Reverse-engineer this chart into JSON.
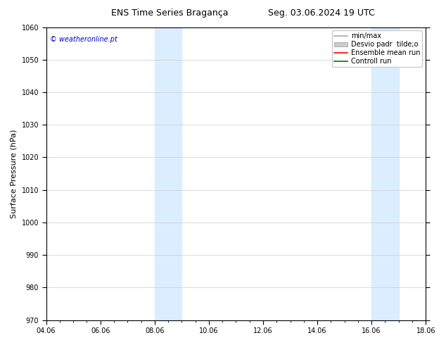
{
  "title_left": "ENS Time Series Bragança",
  "title_right": "Seg. 03.06.2024 19 UTC",
  "ylabel": "Surface Pressure (hPa)",
  "watermark": "© weatheronline.pt",
  "ylim": [
    970,
    1060
  ],
  "yticks": [
    970,
    980,
    990,
    1000,
    1010,
    1020,
    1030,
    1040,
    1050,
    1060
  ],
  "xtick_labels": [
    "04.06",
    "06.06",
    "08.06",
    "10.06",
    "12.06",
    "14.06",
    "16.06",
    "18.06"
  ],
  "xtick_positions": [
    0,
    2,
    4,
    6,
    8,
    10,
    12,
    14
  ],
  "xlim": [
    0,
    14
  ],
  "shaded_bands": [
    {
      "x_start": 4.0,
      "x_end": 5.0
    },
    {
      "x_start": 12.0,
      "x_end": 13.0
    }
  ],
  "shaded_color": "#daeeff",
  "legend_entries": [
    {
      "label": "min/max",
      "color": "#aaaaaa",
      "lw": 1.2,
      "type": "line"
    },
    {
      "label": "Desvio padr  tilde;o",
      "color": "#cccccc",
      "lw": 6,
      "type": "patch"
    },
    {
      "label": "Ensemble mean run",
      "color": "#ff0000",
      "lw": 1.2,
      "type": "line"
    },
    {
      "label": "Controll run",
      "color": "#007700",
      "lw": 1.2,
      "type": "line"
    }
  ],
  "bg_color": "#ffffff",
  "spine_color": "#000000",
  "grid_color": "#cccccc",
  "watermark_color": "#0000cc",
  "title_fontsize": 9,
  "label_fontsize": 8,
  "tick_fontsize": 7,
  "legend_fontsize": 7
}
